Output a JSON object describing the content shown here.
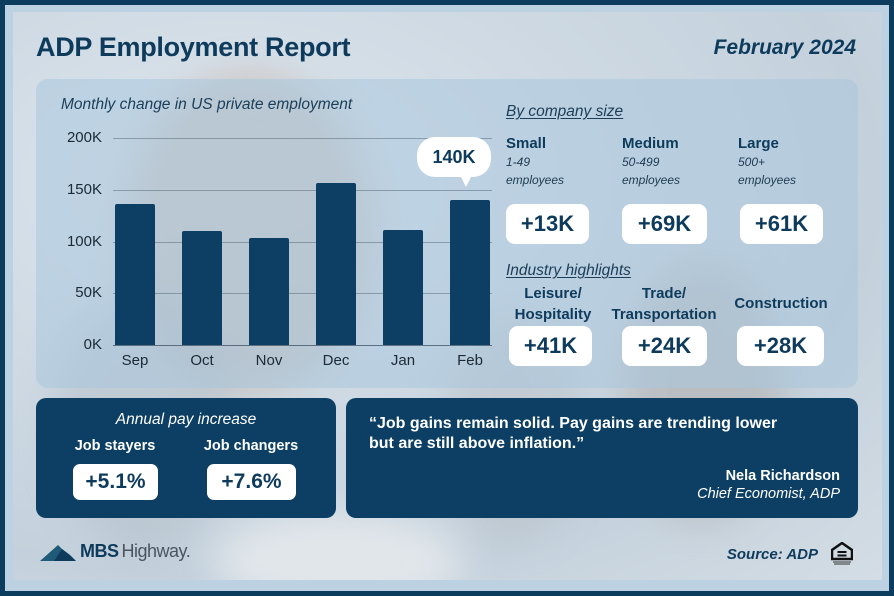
{
  "header": {
    "title": "ADP Employment Report",
    "date": "February 2024"
  },
  "chart": {
    "title": "Monthly change in US private employment",
    "y_ticks": [
      "200K",
      "150K",
      "100K",
      "50K",
      "0K"
    ],
    "x_ticks": [
      "Sep",
      "Oct",
      "Nov",
      "Dec",
      "Jan",
      "Feb"
    ],
    "callout": "140K"
  },
  "chart_data": {
    "type": "bar",
    "title": "Monthly change in US private employment",
    "categories": [
      "Sep",
      "Oct",
      "Nov",
      "Dec",
      "Jan",
      "Feb"
    ],
    "values": [
      136,
      110,
      103,
      157,
      111,
      140
    ],
    "unit": "thousands",
    "xlabel": "",
    "ylabel": "",
    "ylim": [
      0,
      200
    ],
    "yticks": [
      0,
      50,
      100,
      150,
      200
    ],
    "ytick_labels": [
      "0K",
      "50K",
      "100K",
      "150K",
      "200K"
    ],
    "grid": true,
    "annotations": [
      {
        "category": "Feb",
        "text": "140K"
      }
    ],
    "bar_color": "#0c3f63"
  },
  "company_size": {
    "heading": "By company size",
    "items": [
      {
        "name": "Small",
        "range": "1-49",
        "unit": "employees",
        "value": "+13K"
      },
      {
        "name": "Medium",
        "range": "50-499",
        "unit": "employees",
        "value": "+69K"
      },
      {
        "name": "Large",
        "range": "500+",
        "unit": "employees",
        "value": "+61K"
      }
    ]
  },
  "industry": {
    "heading": "Industry highlights",
    "items": [
      {
        "line1": "Leisure/",
        "line2": "Hospitality",
        "value": "+41K"
      },
      {
        "line1": "Trade/",
        "line2": "Transportation",
        "value": "+24K"
      },
      {
        "line1": "Construction",
        "line2": "",
        "value": "+28K"
      }
    ]
  },
  "pay": {
    "title": "Annual pay increase",
    "items": [
      {
        "label": "Job stayers",
        "value": "+5.1%"
      },
      {
        "label": "Job changers",
        "value": "+7.6%"
      }
    ]
  },
  "quote": {
    "text": "“Job gains remain solid. Pay gains are trending lower but are still above inflation.”",
    "name": "Nela Richardson",
    "role": "Chief Economist, ADP"
  },
  "footer": {
    "logo_bold": "MBS",
    "logo_light": "Highway.",
    "source": "Source: ADP"
  },
  "colors": {
    "navy": "#0c3f63",
    "title": "#0e3b5c",
    "border": "#0d3d5e"
  }
}
